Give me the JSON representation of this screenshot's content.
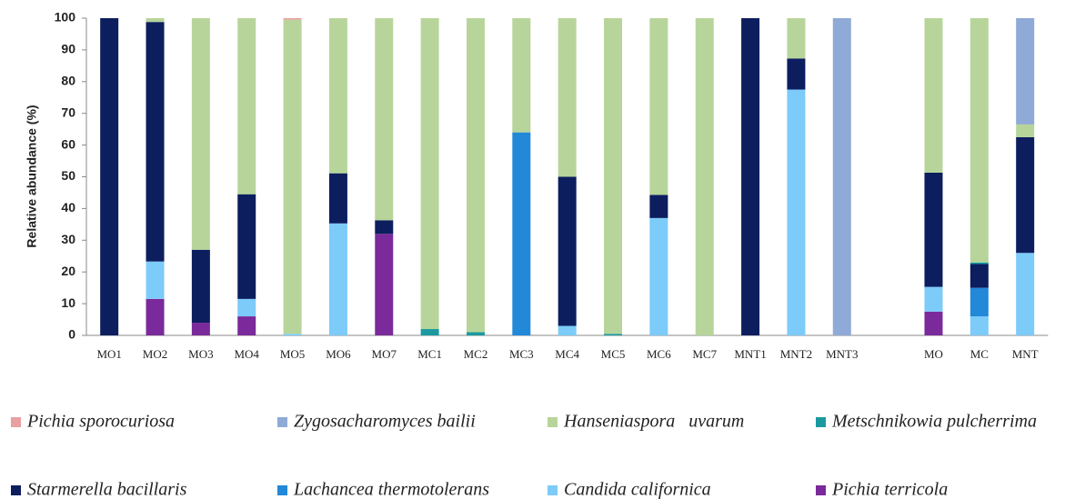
{
  "chart_data": {
    "type": "stacked_bar",
    "y_label": "Relative abundance (%)",
    "categories": [
      "MO1",
      "MO2",
      "MO3",
      "MO4",
      "MO5",
      "MO6",
      "MO7",
      "MC1",
      "MC2",
      "MC3",
      "MC4",
      "MC5",
      "MC6",
      "MC7",
      "MNT1",
      "MNT2",
      "MNT3",
      null,
      "MO",
      "MC",
      "MNT"
    ],
    "ylim": [
      0,
      100
    ],
    "yticks": [
      0,
      10,
      20,
      30,
      40,
      50,
      60,
      70,
      80,
      90,
      100
    ],
    "series": [
      {
        "name": "Pichia sporocuriosa",
        "color": "#e8a0a0",
        "values": [
          0,
          0,
          0,
          0,
          0.5,
          0,
          0,
          0,
          0,
          0,
          0,
          0,
          0,
          0,
          0,
          0,
          0,
          null,
          0,
          0,
          0
        ]
      },
      {
        "name": "Zygosacharomyces bailii",
        "color": "#8faad6",
        "values": [
          0,
          0,
          0,
          0,
          0,
          0,
          0,
          0,
          0,
          0,
          0,
          0,
          0,
          0,
          0,
          0,
          100,
          null,
          0,
          0,
          33.5
        ]
      },
      {
        "name": "Hanseniaspora   uvarum",
        "color": "#b7d59a",
        "values": [
          0,
          1.2,
          73,
          55.5,
          99,
          48.9,
          63.7,
          98,
          99,
          36,
          50,
          99.5,
          55.7,
          100,
          0,
          12.7,
          0,
          null,
          48.7,
          77,
          4
        ]
      },
      {
        "name": "Metschnikowia pulcherrima",
        "color": "#1a9aa0",
        "values": [
          0,
          0,
          0,
          0,
          0,
          0,
          0,
          2,
          1,
          0,
          0,
          0.5,
          0,
          0,
          0,
          0,
          0,
          null,
          0,
          0.5,
          0
        ]
      },
      {
        "name": "Starmerella bacillaris",
        "color": "#0c1e5e",
        "values": [
          100,
          75.5,
          23,
          33,
          0,
          15.8,
          4.3,
          0,
          0,
          0,
          47,
          0,
          7.3,
          0,
          100,
          9.8,
          0,
          null,
          36,
          7.5,
          36.5
        ]
      },
      {
        "name": "Lachancea thermotolerans",
        "color": "#2288d8",
        "values": [
          0,
          0,
          0,
          0,
          0,
          0,
          0,
          0,
          0,
          64,
          0,
          0,
          0,
          0,
          0,
          0,
          0,
          null,
          0,
          9,
          0
        ]
      },
      {
        "name": "Candida californica",
        "color": "#7ccbf8",
        "values": [
          0,
          11.8,
          0,
          5.5,
          0.5,
          35.3,
          0,
          0,
          0,
          0,
          3,
          0,
          37,
          0,
          0,
          77.5,
          0,
          null,
          7.8,
          6,
          26
        ]
      },
      {
        "name": "Pichia terricola",
        "color": "#7a2a9a",
        "values": [
          0,
          11.5,
          4,
          6,
          0,
          0,
          32,
          0,
          0,
          0,
          0,
          0,
          0,
          0,
          0,
          0,
          0,
          null,
          7.5,
          0,
          0
        ]
      }
    ]
  }
}
